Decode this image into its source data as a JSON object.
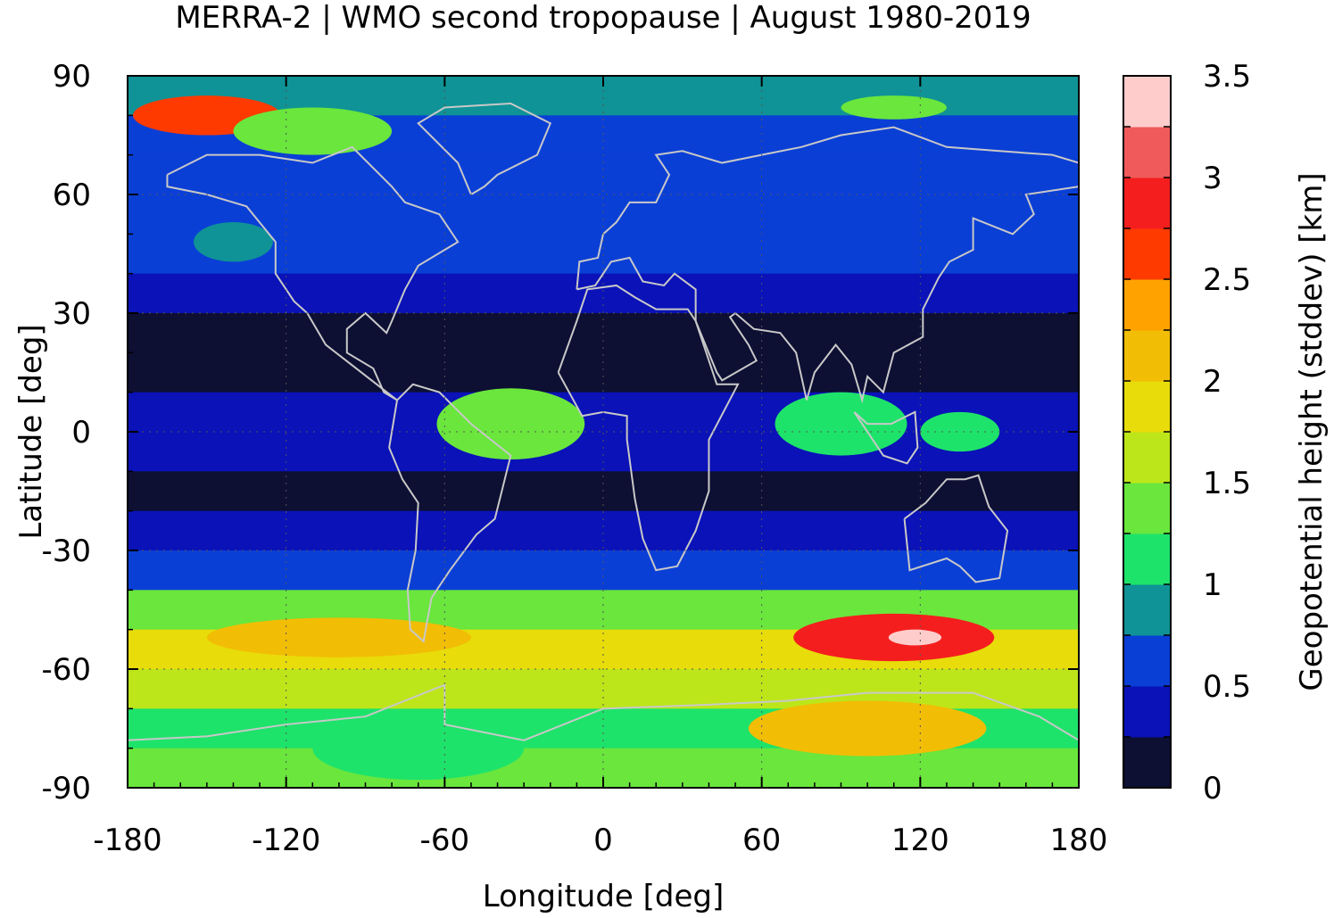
{
  "chart_data": {
    "type": "heatmap",
    "title": "MERRA-2 | WMO second tropopause | August 1980-2019",
    "xlabel": "Longitude [deg]",
    "ylabel": "Latitude [deg]",
    "colorbar_label": "Geopotential height (stddev) [km]",
    "xlim": [
      -180,
      180
    ],
    "ylim": [
      -90,
      90
    ],
    "x_ticks": [
      "-180",
      "-120",
      "-60",
      "0",
      "60",
      "120",
      "180"
    ],
    "x_tick_values": [
      -180,
      -120,
      -60,
      0,
      60,
      120,
      180
    ],
    "y_ticks": [
      "90",
      "60",
      "30",
      "0",
      "-30",
      "-60",
      "-90"
    ],
    "y_tick_values": [
      90,
      60,
      30,
      0,
      -30,
      -60,
      -90
    ],
    "colorbar_ticks": [
      "3.5",
      "3",
      "2.5",
      "2",
      "1.5",
      "1",
      "0.5",
      "0"
    ],
    "colorbar_tick_values": [
      3.5,
      3,
      2.5,
      2,
      1.5,
      1,
      0.5,
      0
    ],
    "colorbar_range": [
      0,
      3.5
    ],
    "levels": [
      0,
      0.25,
      0.5,
      0.75,
      1.0,
      1.25,
      1.5,
      1.75,
      2.0,
      2.25,
      2.5,
      2.75,
      3.0,
      3.25,
      3.5
    ],
    "level_colors": [
      "#0d0f33",
      "#0a12b8",
      "#0a3fd6",
      "#0f9396",
      "#1ee36a",
      "#6ae63c",
      "#bde61a",
      "#e8dc0a",
      "#f2bd05",
      "#ffa200",
      "#ff3a00",
      "#f51e1e",
      "#f05a5a",
      "#ffcccc"
    ],
    "grid": true,
    "coastlines_color": "#c8c8c8",
    "lat_profile": [
      {
        "lat": 85,
        "value": 0.9
      },
      {
        "lat": 75,
        "value": 0.6
      },
      {
        "lat": 65,
        "value": 0.55
      },
      {
        "lat": 55,
        "value": 0.6
      },
      {
        "lat": 45,
        "value": 0.55
      },
      {
        "lat": 35,
        "value": 0.35
      },
      {
        "lat": 25,
        "value": 0.15
      },
      {
        "lat": 15,
        "value": 0.15
      },
      {
        "lat": 5,
        "value": 0.3
      },
      {
        "lat": -5,
        "value": 0.3
      },
      {
        "lat": -15,
        "value": 0.15
      },
      {
        "lat": -25,
        "value": 0.45
      },
      {
        "lat": -35,
        "value": 0.7
      },
      {
        "lat": -45,
        "value": 1.4
      },
      {
        "lat": -55,
        "value": 1.8
      },
      {
        "lat": -65,
        "value": 1.6
      },
      {
        "lat": -75,
        "value": 1.2
      },
      {
        "lat": -85,
        "value": 1.3
      }
    ],
    "features": [
      {
        "lon": -150,
        "lat": 80,
        "rx": 28,
        "ry": 5,
        "value": 2.7
      },
      {
        "lon": -110,
        "lat": 76,
        "rx": 30,
        "ry": 6,
        "value": 1.4
      },
      {
        "lon": 110,
        "lat": 82,
        "rx": 20,
        "ry": 3,
        "value": 1.3
      },
      {
        "lon": -35,
        "lat": 2,
        "rx": 28,
        "ry": 9,
        "value": 1.3
      },
      {
        "lon": 90,
        "lat": 2,
        "rx": 25,
        "ry": 8,
        "value": 1.2
      },
      {
        "lon": 135,
        "lat": 0,
        "rx": 15,
        "ry": 5,
        "value": 1.1
      },
      {
        "lon": -140,
        "lat": 48,
        "rx": 15,
        "ry": 5,
        "value": 0.9
      },
      {
        "lon": 110,
        "lat": -52,
        "rx": 38,
        "ry": 6,
        "value": 2.8
      },
      {
        "lon": 118,
        "lat": -52,
        "rx": 10,
        "ry": 2,
        "value": 3.3
      },
      {
        "lon": 100,
        "lat": -75,
        "rx": 45,
        "ry": 7,
        "value": 2.0
      },
      {
        "lon": -70,
        "lat": -80,
        "rx": 40,
        "ry": 8,
        "value": 1.0
      },
      {
        "lon": -100,
        "lat": -52,
        "rx": 50,
        "ry": 5,
        "value": 2.0
      }
    ]
  }
}
